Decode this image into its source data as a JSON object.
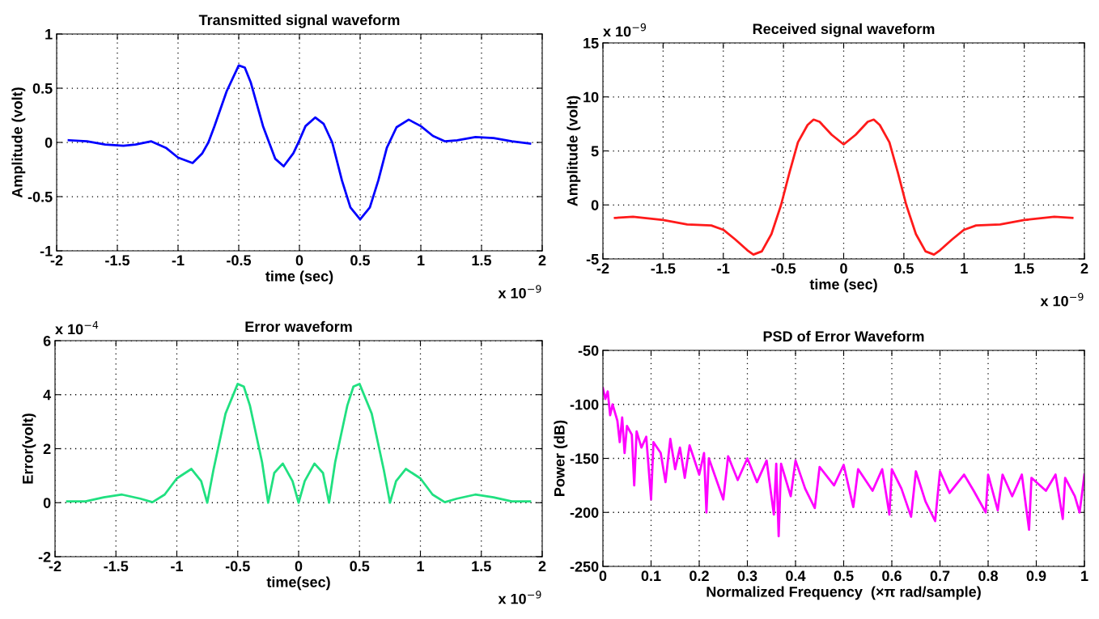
{
  "chart_data": [
    {
      "type": "line",
      "title": "Transmitted signal waveform",
      "xlabel": "time (sec)",
      "ylabel": "Amplitude (volt)",
      "annotations": [
        "x 10$^{−9}$"
      ],
      "xlim": [
        -2,
        2
      ],
      "xticks": [
        -2,
        -1.5,
        -1,
        -0.5,
        0,
        0.5,
        1,
        1.5,
        2
      ],
      "ylim": [
        -1,
        1
      ],
      "yticks": [
        -1,
        -0.5,
        0,
        0.5,
        1
      ],
      "grid": true,
      "series": [
        {
          "color": "#0000ff",
          "x": [
            -1.9,
            -1.75,
            -1.6,
            -1.45,
            -1.35,
            -1.22,
            -1.1,
            -1.0,
            -0.88,
            -0.8,
            -0.75,
            -0.7,
            -0.6,
            -0.5,
            -0.45,
            -0.4,
            -0.3,
            -0.2,
            -0.13,
            -0.05,
            0,
            0.05,
            0.13,
            0.2,
            0.27,
            0.35,
            0.42,
            0.5,
            0.58,
            0.65,
            0.72,
            0.8,
            0.9,
            1.0,
            1.1,
            1.2,
            1.3,
            1.45,
            1.6,
            1.75,
            1.9
          ],
          "values": [
            0.02,
            0.01,
            -0.02,
            -0.03,
            -0.02,
            0.01,
            -0.05,
            -0.14,
            -0.19,
            -0.1,
            0,
            0.15,
            0.47,
            0.71,
            0.69,
            0.55,
            0.15,
            -0.15,
            -0.22,
            -0.1,
            0.02,
            0.15,
            0.23,
            0.17,
            0,
            -0.35,
            -0.6,
            -0.71,
            -0.6,
            -0.35,
            -0.05,
            0.14,
            0.21,
            0.15,
            0.06,
            0.01,
            0.02,
            0.05,
            0.04,
            0.01,
            -0.01
          ]
        }
      ]
    },
    {
      "type": "line",
      "title": "Received signal waveform",
      "xlabel": "time (sec)",
      "ylabel": "Amplitude (volt)",
      "annotations": [
        "x 10$^{−9}$",
        "x 10$^{−9}$"
      ],
      "xlim": [
        -2,
        2
      ],
      "xticks": [
        -2,
        -1.5,
        -1,
        -0.5,
        0,
        0.5,
        1,
        1.5,
        2
      ],
      "ylim": [
        -5,
        15
      ],
      "yticks": [
        -5,
        0,
        5,
        10,
        15
      ],
      "grid": true,
      "series": [
        {
          "color": "#ff1a1a",
          "x": [
            -1.9,
            -1.75,
            -1.5,
            -1.3,
            -1.1,
            -1.0,
            -0.9,
            -0.8,
            -0.75,
            -0.68,
            -0.6,
            -0.52,
            -0.45,
            -0.38,
            -0.3,
            -0.25,
            -0.2,
            -0.1,
            0,
            0.1,
            0.2,
            0.25,
            0.3,
            0.38,
            0.45,
            0.52,
            0.6,
            0.68,
            0.75,
            0.8,
            0.9,
            1.0,
            1.1,
            1.3,
            1.5,
            1.75,
            1.9
          ],
          "values": [
            -1.2,
            -1.1,
            -1.4,
            -1.8,
            -1.9,
            -2.3,
            -3.2,
            -4.2,
            -4.6,
            -4.3,
            -2.7,
            0,
            3.0,
            5.8,
            7.4,
            7.9,
            7.7,
            6.5,
            5.6,
            6.5,
            7.7,
            7.9,
            7.4,
            5.8,
            3.0,
            0,
            -2.7,
            -4.3,
            -4.6,
            -4.2,
            -3.2,
            -2.3,
            -1.9,
            -1.8,
            -1.4,
            -1.1,
            -1.2
          ]
        }
      ]
    },
    {
      "type": "line",
      "title": "Error waveform",
      "xlabel": "time(sec)",
      "ylabel": "Error(volt)",
      "annotations": [
        "x 10$^{−4}$",
        "x 10$^{−9}$"
      ],
      "xlim": [
        -2,
        2
      ],
      "xticks": [
        -2,
        -1.5,
        -1,
        -0.5,
        0,
        0.5,
        1,
        1.5,
        2
      ],
      "ylim": [
        -2,
        6
      ],
      "yticks": [
        -2,
        0,
        2,
        4,
        6
      ],
      "grid": true,
      "series": [
        {
          "color": "#20e080",
          "x": [
            -1.9,
            -1.75,
            -1.6,
            -1.45,
            -1.3,
            -1.2,
            -1.1,
            -1.0,
            -0.88,
            -0.8,
            -0.75,
            -0.7,
            -0.6,
            -0.5,
            -0.45,
            -0.4,
            -0.3,
            -0.25,
            -0.2,
            -0.13,
            -0.05,
            0,
            0.05,
            0.13,
            0.2,
            0.25,
            0.3,
            0.4,
            0.45,
            0.5,
            0.6,
            0.7,
            0.75,
            0.8,
            0.88,
            1.0,
            1.1,
            1.2,
            1.3,
            1.45,
            1.6,
            1.75,
            1.9
          ],
          "values": [
            0.05,
            0.05,
            0.2,
            0.3,
            0.15,
            0.02,
            0.3,
            0.9,
            1.25,
            0.8,
            0,
            1.2,
            3.3,
            4.4,
            4.3,
            3.6,
            1.5,
            0,
            1.1,
            1.45,
            0.8,
            0,
            0.8,
            1.45,
            1.1,
            0,
            1.5,
            3.6,
            4.3,
            4.4,
            3.3,
            1.2,
            0,
            0.8,
            1.25,
            0.9,
            0.3,
            0.02,
            0.15,
            0.3,
            0.2,
            0.05,
            0.05
          ]
        }
      ]
    },
    {
      "type": "line",
      "title": "PSD of Error Waveform",
      "xlabel": "Normalized Frequency  (×π rad/sample)",
      "ylabel": "Power (dB)",
      "xlim": [
        0,
        1
      ],
      "xticks": [
        0,
        0.1,
        0.2,
        0.3,
        0.4,
        0.5,
        0.6,
        0.7,
        0.8,
        0.9,
        1
      ],
      "ylim": [
        -250,
        -50
      ],
      "yticks": [
        -250,
        -200,
        -150,
        -100,
        -50
      ],
      "grid": true,
      "series": [
        {
          "color": "#ff00ff",
          "x": [
            0,
            0.005,
            0.01,
            0.015,
            0.02,
            0.03,
            0.035,
            0.04,
            0.045,
            0.05,
            0.06,
            0.065,
            0.07,
            0.08,
            0.09,
            0.1,
            0.105,
            0.12,
            0.13,
            0.14,
            0.15,
            0.16,
            0.17,
            0.18,
            0.2,
            0.21,
            0.215,
            0.22,
            0.25,
            0.26,
            0.28,
            0.3,
            0.32,
            0.34,
            0.355,
            0.36,
            0.365,
            0.37,
            0.39,
            0.4,
            0.42,
            0.44,
            0.45,
            0.48,
            0.5,
            0.52,
            0.53,
            0.56,
            0.58,
            0.595,
            0.6,
            0.62,
            0.64,
            0.65,
            0.67,
            0.69,
            0.7,
            0.72,
            0.75,
            0.77,
            0.795,
            0.8,
            0.82,
            0.83,
            0.85,
            0.87,
            0.885,
            0.89,
            0.92,
            0.94,
            0.955,
            0.96,
            0.98,
            0.99,
            1.0
          ],
          "values": [
            -85,
            -95,
            -88,
            -110,
            -100,
            -115,
            -135,
            -112,
            -145,
            -120,
            -128,
            -175,
            -125,
            -140,
            -130,
            -188,
            -135,
            -145,
            -172,
            -132,
            -160,
            -140,
            -168,
            -138,
            -165,
            -145,
            -200,
            -150,
            -188,
            -148,
            -170,
            -150,
            -172,
            -152,
            -202,
            -155,
            -222,
            -155,
            -185,
            -152,
            -178,
            -196,
            -158,
            -175,
            -156,
            -195,
            -160,
            -180,
            -160,
            -202,
            -160,
            -178,
            -204,
            -162,
            -190,
            -208,
            -162,
            -182,
            -165,
            -180,
            -200,
            -165,
            -198,
            -165,
            -185,
            -165,
            -216,
            -168,
            -180,
            -165,
            -206,
            -168,
            -185,
            -200,
            -165
          ]
        }
      ]
    }
  ]
}
